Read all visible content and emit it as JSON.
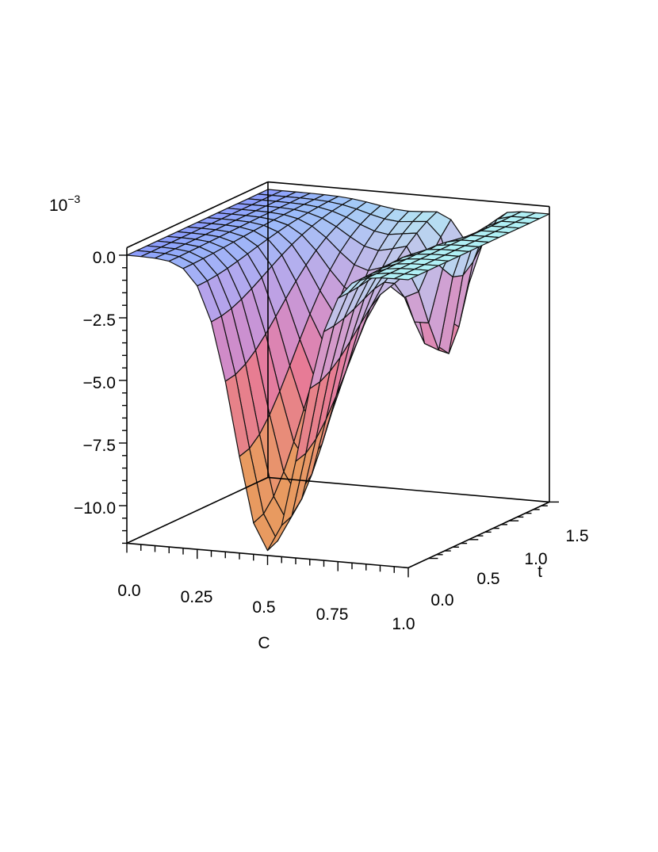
{
  "chart_data": {
    "type": "surface3d",
    "title": "",
    "scale_label": "10",
    "scale_exponent": "−3",
    "x_axis": {
      "label": "C",
      "range": [
        0,
        1
      ],
      "ticks": [
        "0.0",
        "0.25",
        "0.5",
        "0.75",
        "1.0"
      ],
      "tick_values": [
        0,
        0.25,
        0.5,
        0.75,
        1.0
      ]
    },
    "y_axis": {
      "label": "t",
      "range": [
        -0.25,
        1.5
      ],
      "ticks": [
        "0.0",
        "0.5",
        "1.0",
        "1.5"
      ],
      "tick_values": [
        0,
        0.5,
        1.0,
        1.5
      ]
    },
    "z_axis": {
      "label": "",
      "range": [
        -11.5,
        0.3
      ],
      "ticks": [
        "0.0",
        "−2.5",
        "−5.0",
        "−7.5",
        "−10.0"
      ],
      "tick_values": [
        0,
        -2.5,
        -5,
        -7.5,
        -10
      ]
    },
    "surface": {
      "x_samples": 21,
      "y_samples": 15,
      "description_of_shape": "trough centred at C≈0.5, deepest (≈−11.3e-3) at low t, secondary dip near C≈0.75 for high t",
      "min_value": -11.3
    },
    "grid": false,
    "colormap": [
      "#b0f0f5",
      "#e64de6",
      "#e89a60",
      "#8080ff"
    ]
  }
}
